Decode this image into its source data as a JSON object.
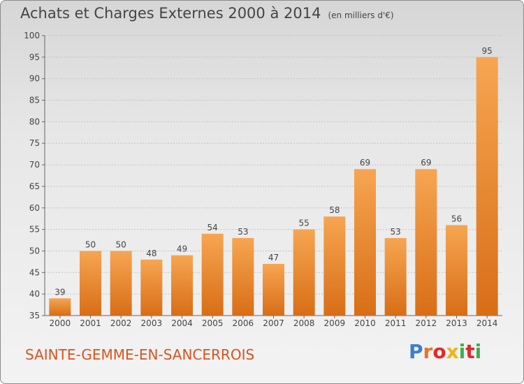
{
  "header": {
    "title": "Achats et Charges Externes 2000 à 2014",
    "subtitle": "(en milliers d'€)"
  },
  "footer": {
    "commune": "SAINTE-GEMME-EN-SANCERROIS",
    "logo": "Proxiti",
    "logo_colors": [
      "#3a7fd0",
      "#e8742a",
      "#e02a2a",
      "#f1b21a",
      "#3fae49",
      "#e02a2a",
      "#3fae49"
    ]
  },
  "chart_data": {
    "type": "bar",
    "categories": [
      "2000",
      "2001",
      "2002",
      "2003",
      "2004",
      "2005",
      "2006",
      "2007",
      "2008",
      "2009",
      "2010",
      "2011",
      "2012",
      "2013",
      "2014"
    ],
    "values": [
      39,
      50,
      50,
      48,
      49,
      54,
      53,
      47,
      55,
      58,
      69,
      53,
      69,
      56,
      95
    ],
    "title": "Achats et Charges Externes 2000 à 2014",
    "ylim": [
      35,
      100
    ],
    "yticks": [
      35,
      40,
      45,
      50,
      55,
      60,
      65,
      70,
      75,
      80,
      85,
      90,
      95,
      100
    ],
    "grid": true,
    "bar_color_top": "#f7a552",
    "bar_color_bottom": "#d86e16"
  }
}
